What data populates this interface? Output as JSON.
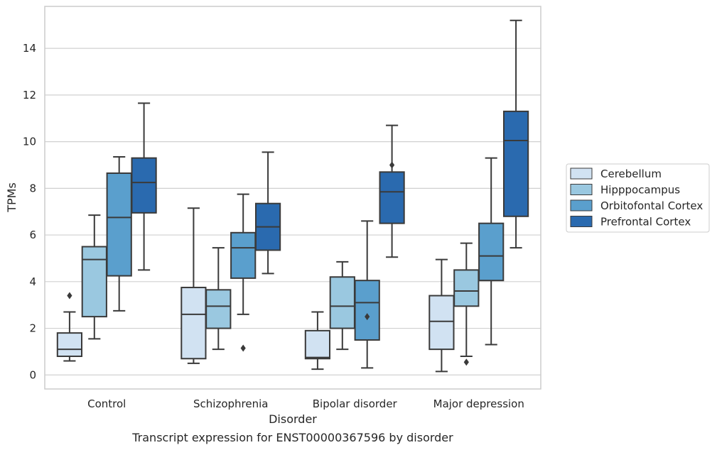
{
  "chart_data": {
    "type": "box",
    "xlabel": "Disorder",
    "ylabel": "TPMs",
    "caption": "Transcript expression for ENST00000367596 by disorder",
    "ylim": [
      -0.6,
      15.8
    ],
    "yticks": [
      0,
      2,
      4,
      6,
      8,
      10,
      12,
      14
    ],
    "grid": true,
    "legend_position": "right",
    "categories": [
      "Control",
      "Schizophrenia",
      "Bipolar disorder",
      "Major depression"
    ],
    "series": [
      {
        "name": "Cerebellum",
        "color": "#d1e2f2",
        "boxes": [
          {
            "whislo": 0.6,
            "q1": 0.8,
            "med": 1.1,
            "q3": 1.8,
            "whishi": 2.7,
            "fliers": [
              3.4
            ]
          },
          {
            "whislo": 0.5,
            "q1": 0.7,
            "med": 2.6,
            "q3": 3.75,
            "whishi": 7.15,
            "fliers": []
          },
          {
            "whislo": 0.25,
            "q1": 0.7,
            "med": 0.75,
            "q3": 1.9,
            "whishi": 2.7,
            "fliers": []
          },
          {
            "whislo": 0.15,
            "q1": 1.1,
            "med": 2.3,
            "q3": 3.4,
            "whishi": 4.95,
            "fliers": []
          }
        ]
      },
      {
        "name": "Hipppocampus",
        "color": "#9ac8e0",
        "boxes": [
          {
            "whislo": 1.55,
            "q1": 2.5,
            "med": 4.95,
            "q3": 5.5,
            "whishi": 6.85,
            "fliers": []
          },
          {
            "whislo": 1.1,
            "q1": 2.0,
            "med": 2.95,
            "q3": 3.65,
            "whishi": 5.45,
            "fliers": []
          },
          {
            "whislo": 1.1,
            "q1": 2.0,
            "med": 2.95,
            "q3": 4.2,
            "whishi": 4.85,
            "fliers": []
          },
          {
            "whislo": 0.8,
            "q1": 2.95,
            "med": 3.6,
            "q3": 4.5,
            "whishi": 5.65,
            "fliers": [
              0.55
            ]
          }
        ]
      },
      {
        "name": "Orbitofontal Cortex",
        "color": "#5a9fcd",
        "boxes": [
          {
            "whislo": 2.75,
            "q1": 4.25,
            "med": 6.75,
            "q3": 8.65,
            "whishi": 9.35,
            "fliers": []
          },
          {
            "whislo": 2.6,
            "q1": 4.15,
            "med": 5.45,
            "q3": 6.1,
            "whishi": 7.75,
            "fliers": [
              1.15
            ]
          },
          {
            "whislo": 0.3,
            "q1": 1.5,
            "med": 3.1,
            "q3": 4.05,
            "whishi": 6.6,
            "fliers": [
              2.5
            ]
          },
          {
            "whislo": 1.3,
            "q1": 4.05,
            "med": 5.1,
            "q3": 6.5,
            "whishi": 9.3,
            "fliers": []
          }
        ]
      },
      {
        "name": "Prefrontal Cortex",
        "color": "#2a6aaf",
        "boxes": [
          {
            "whislo": 4.5,
            "q1": 6.95,
            "med": 8.25,
            "q3": 9.3,
            "whishi": 11.65,
            "fliers": []
          },
          {
            "whislo": 4.35,
            "q1": 5.35,
            "med": 6.35,
            "q3": 7.35,
            "whishi": 9.55,
            "fliers": []
          },
          {
            "whislo": 5.05,
            "q1": 6.5,
            "med": 7.85,
            "q3": 8.7,
            "whishi": 10.7,
            "fliers": [
              9.0
            ]
          },
          {
            "whislo": 5.45,
            "q1": 6.8,
            "med": 10.05,
            "q3": 11.3,
            "whishi": 15.2,
            "fliers": []
          }
        ]
      }
    ]
  }
}
